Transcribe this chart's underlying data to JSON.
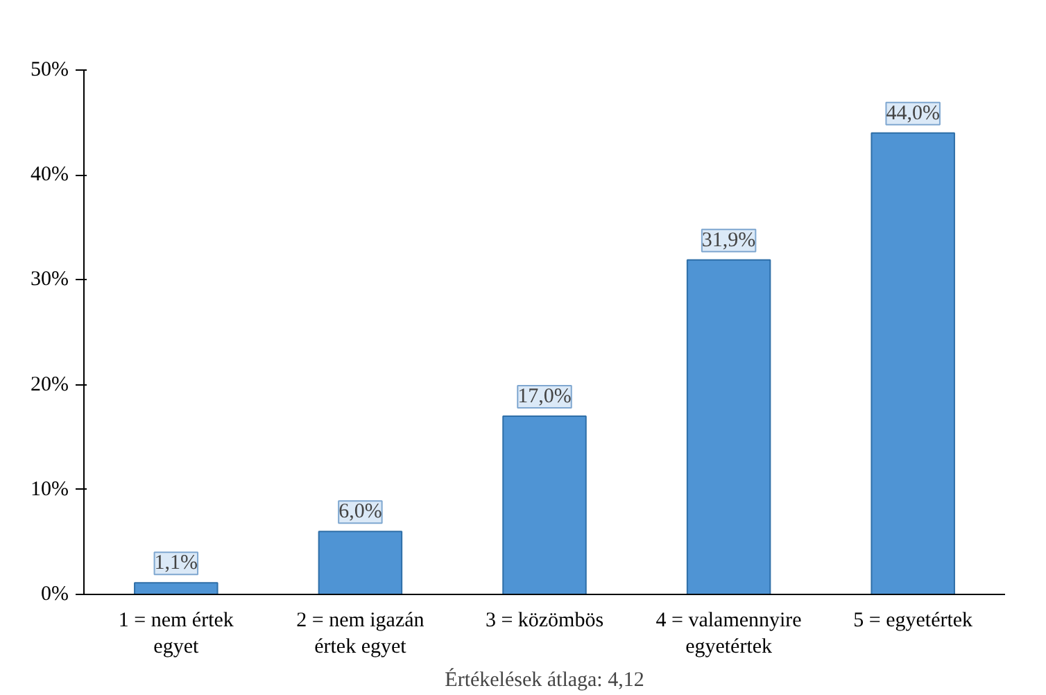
{
  "chart_data": {
    "type": "bar",
    "xlabel": "Értékelések átlaga: 4,12",
    "categories": [
      "1 = nem értek egyet",
      "2 = nem igazán értek egyet",
      "3 = közömbös",
      "4 = valamennyire egyetértek",
      "5 = egyetértek"
    ],
    "values": [
      1.1,
      6.0,
      17.0,
      31.9,
      44.0
    ],
    "value_labels": [
      "1,1%",
      "6,0%",
      "17,0%",
      "31,9%",
      "44,0%"
    ],
    "color": "#4f94d4",
    "ylim": [
      0,
      50
    ],
    "yticks": [
      {
        "value": 0,
        "label": "0%"
      },
      {
        "value": 10,
        "label": "10%"
      },
      {
        "value": 20,
        "label": "20%"
      },
      {
        "value": 30,
        "label": "30%"
      },
      {
        "value": 40,
        "label": "40%"
      },
      {
        "value": 50,
        "label": "50%"
      }
    ],
    "grid": false
  }
}
